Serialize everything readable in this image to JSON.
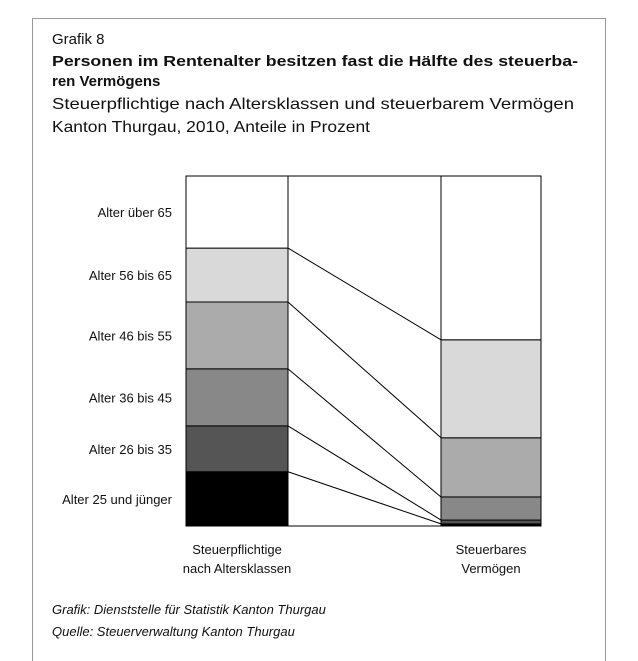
{
  "chart_data": {
    "type": "bar",
    "label": "Grafik 8",
    "title": [
      "Personen im Rentenalter besitzen fast die Hälfte des steuerba-",
      "ren Vermögens"
    ],
    "subtitle": [
      "Steuerpflichtige nach Altersklassen und steuerbarem Vermögen",
      "Kanton Thurgau, 2010, Anteile in Prozent"
    ],
    "categories": [
      [
        "Steuerpflichtige",
        "nach Altersklassen"
      ],
      [
        "Steuerbares",
        "Vermögen"
      ]
    ],
    "series": [
      {
        "name": "Alter 25 und jünger",
        "color": "#000000",
        "values": [
          15.5,
          0.6
        ]
      },
      {
        "name": "Alter 26 bis 35",
        "color": "#555555",
        "values": [
          13.1,
          1.1
        ]
      },
      {
        "name": "Alter 36 bis 45",
        "color": "#888888",
        "values": [
          16.3,
          6.6
        ]
      },
      {
        "name": "Alter 46 bis 55",
        "color": "#ababab",
        "values": [
          19.1,
          16.9
        ]
      },
      {
        "name": "Alter 56 bis 65",
        "color": "#d9d9d9",
        "values": [
          15.4,
          28.0
        ]
      },
      {
        "name": "Alter über 65",
        "color": "#ffffff",
        "values": [
          20.6,
          46.8
        ]
      }
    ],
    "ylim": [
      0,
      100
    ],
    "notes": [
      "Grafik: Dienststelle für Statistik Kanton Thurgau",
      "Quelle: Steuerverwaltung Kanton Thurgau"
    ]
  }
}
